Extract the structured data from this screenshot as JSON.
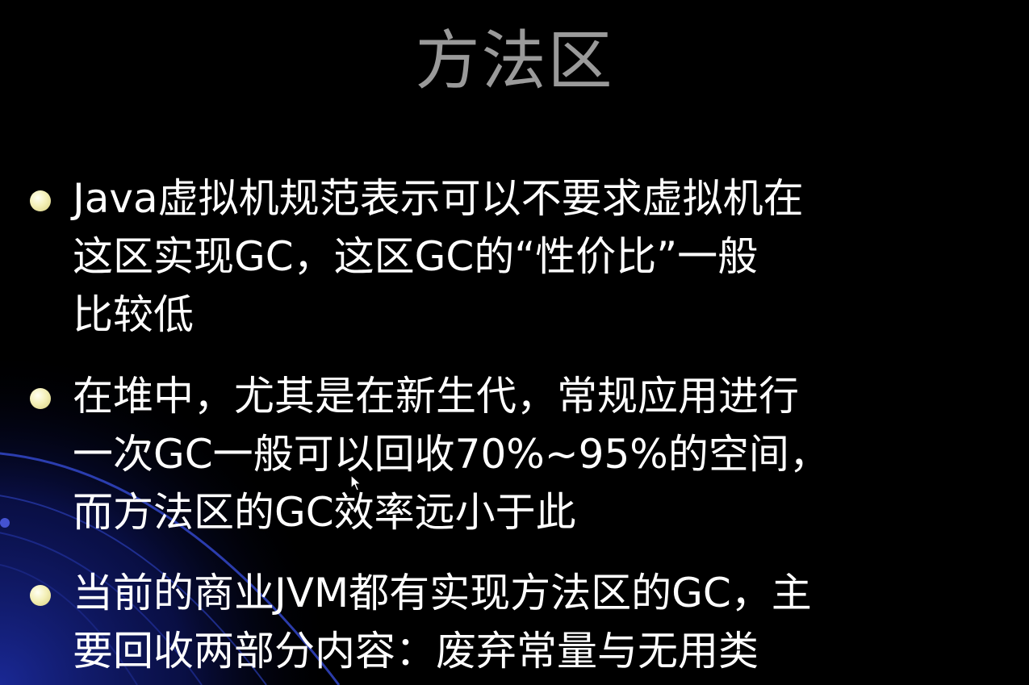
{
  "slide": {
    "title": "方法区",
    "bullets": [
      {
        "lines": [
          "Java虚拟机规范表示可以不要求虚拟机在",
          "这区实现GC，这区GC的“性价比”一般",
          "比较低"
        ]
      },
      {
        "lines": [
          "在堆中，尤其是在新生代，常规应用进行",
          "一次GC一般可以回收70%~95%的空间，",
          "而方法区的GC效率远小于此"
        ]
      },
      {
        "lines": [
          "当前的商业JVM都有实现方法区的GC，主",
          "要回收两部分内容：废弃常量与无用类"
        ]
      }
    ]
  },
  "theme": {
    "background": "#000000",
    "title_color": "#9a9a9a",
    "text_color": "#ffffff",
    "bullet_color": "#f4f0b8",
    "decor_color": "#1a2a9a"
  },
  "icons": {
    "bullet": "bullet-dot-icon",
    "cursor": "mouse-pointer-icon"
  }
}
